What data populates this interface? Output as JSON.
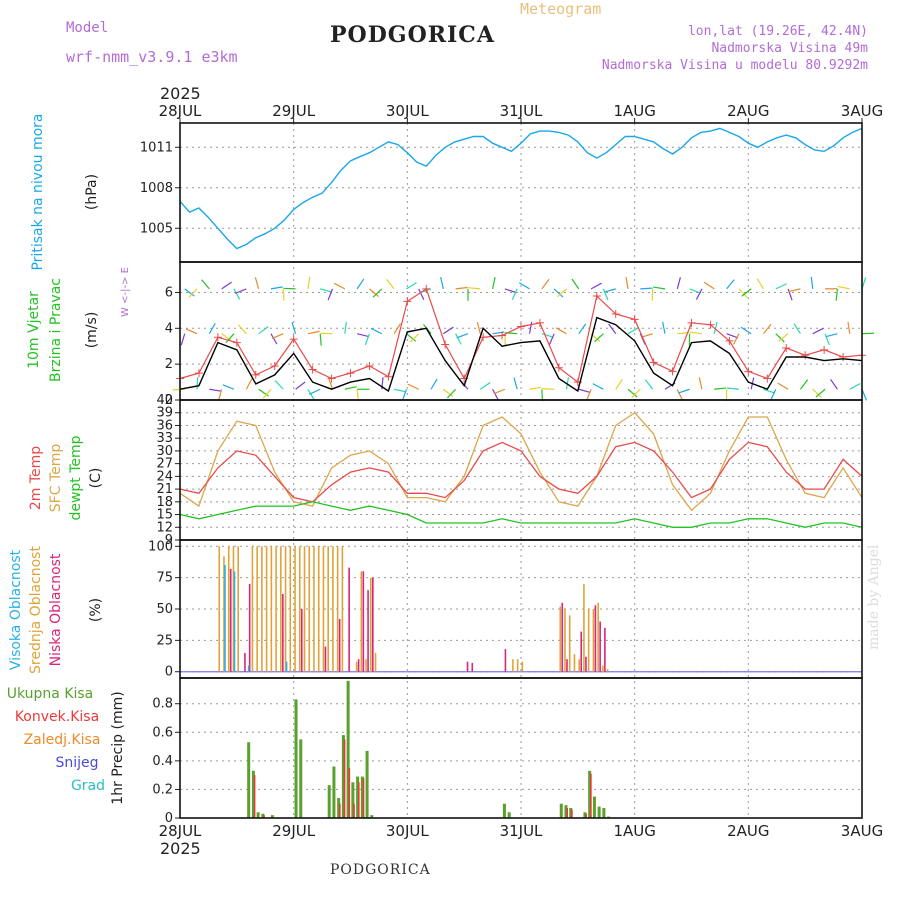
{
  "header": {
    "model_label": "Model",
    "model_name": "wrf-nmm_v3.9.1 e3km",
    "title": "PODGORICA",
    "meteogram": "Meteogram",
    "lonlat": "lon,lat (19.26E, 42.4N)",
    "altitude": "Nadmorska Visina 49m",
    "model_altitude": "Nadmorska Visina u modelu 80.9292m"
  },
  "footer": {
    "station": "PODGORICA",
    "credit": "made by Angel"
  },
  "time_axis": {
    "year": "2025",
    "labels": [
      "28JUL",
      "29JUL",
      "30JUL",
      "31JUL",
      "1AUG",
      "2AUG",
      "3AUG"
    ]
  },
  "colors": {
    "pressure": "#1aa7e8",
    "temp2m": "#e84a4a",
    "sfctemp": "#dca64a",
    "dewpt": "#22c322",
    "cloud_high": "#2bb0e8",
    "cloud_mid": "#e0a33a",
    "cloud_low": "#d8267a",
    "precip_total": "#5aa02c",
    "precip_conv": "#e83a3a",
    "precip_frz": "#f08a2a",
    "precip_snow": "#4a4ad8",
    "precip_hail": "#2ac0c0"
  },
  "chart_data": [
    {
      "type": "line",
      "title": "Pritisak na nivou mora",
      "ylabel": "(hPa)",
      "ylim": [
        1002.5,
        1012.8
      ],
      "yticks": [
        "1005",
        "1008",
        "1011"
      ],
      "x": [
        0,
        2,
        4,
        6,
        8,
        10,
        12,
        14,
        16,
        18,
        20,
        22,
        24,
        26,
        28,
        30,
        32,
        34,
        36,
        38,
        40,
        42,
        44,
        46,
        48,
        50,
        52,
        54,
        56,
        58,
        60,
        62,
        64,
        66,
        68,
        70,
        72,
        74,
        76,
        78,
        80,
        82,
        84,
        86,
        88,
        90,
        92,
        94,
        96,
        98,
        100,
        102,
        104,
        106,
        108,
        110,
        112,
        114,
        116,
        118,
        120,
        122,
        124,
        126,
        128,
        130,
        132,
        134,
        136,
        138,
        140,
        142,
        144
      ],
      "series": [
        {
          "name": "pressure",
          "values": [
            1007.0,
            1006.2,
            1006.5,
            1005.8,
            1005.0,
            1004.2,
            1003.5,
            1003.8,
            1004.3,
            1004.6,
            1005.0,
            1005.6,
            1006.4,
            1006.9,
            1007.3,
            1007.6,
            1008.4,
            1009.3,
            1010.0,
            1010.3,
            1010.6,
            1011.0,
            1011.4,
            1011.2,
            1010.6,
            1009.9,
            1009.6,
            1010.4,
            1011.0,
            1011.4,
            1011.6,
            1011.8,
            1011.8,
            1011.3,
            1011.0,
            1010.7,
            1011.3,
            1012.0,
            1012.2,
            1012.2,
            1012.1,
            1011.9,
            1011.4,
            1010.6,
            1010.2,
            1010.6,
            1011.2,
            1011.8,
            1011.8,
            1011.6,
            1011.4,
            1010.9,
            1010.5,
            1011.0,
            1011.7,
            1012.1,
            1012.2,
            1012.4,
            1012.1,
            1011.8,
            1011.3,
            1011.0,
            1011.4,
            1011.7,
            1011.9,
            1011.7,
            1011.2,
            1010.8,
            1010.7,
            1011.1,
            1011.7,
            1012.1,
            1012.4
          ]
        }
      ]
    },
    {
      "type": "line",
      "title": "10m Vjetar Brzina i Pravac",
      "ylabel": "(m/s)",
      "ylim": [
        0,
        7.7
      ],
      "yticks": [
        "0",
        "2",
        "4",
        "6"
      ],
      "compass": "W <-|-> E",
      "x": [
        0,
        4,
        8,
        12,
        16,
        20,
        24,
        28,
        32,
        36,
        40,
        44,
        48,
        52,
        56,
        60,
        64,
        68,
        72,
        76,
        80,
        84,
        88,
        92,
        96,
        100,
        104,
        108,
        112,
        116,
        120,
        124,
        128,
        132,
        136,
        140,
        144
      ],
      "series": [
        {
          "name": "wind_speed",
          "values": [
            0.6,
            0.8,
            3.2,
            2.8,
            0.9,
            1.4,
            2.6,
            1.0,
            0.6,
            1.0,
            1.2,
            0.5,
            3.8,
            4.0,
            2.2,
            0.8,
            4.0,
            3.0,
            3.2,
            3.3,
            1.2,
            0.5,
            4.6,
            4.2,
            3.3,
            1.5,
            0.8,
            3.2,
            3.3,
            2.6,
            1.0,
            0.6,
            2.4,
            2.4,
            2.2,
            2.3,
            2.2
          ]
        },
        {
          "name": "wind_gust",
          "values": [
            1.2,
            1.5,
            3.5,
            3.2,
            1.4,
            1.9,
            3.4,
            1.7,
            1.2,
            1.5,
            1.9,
            1.3,
            5.5,
            6.2,
            3.1,
            1.2,
            3.5,
            3.6,
            4.1,
            4.3,
            1.8,
            1.0,
            5.8,
            4.8,
            4.5,
            2.1,
            1.6,
            4.3,
            4.2,
            3.3,
            1.6,
            1.2,
            2.9,
            2.5,
            2.8,
            2.4,
            2.5
          ]
        }
      ]
    },
    {
      "type": "line",
      "title": "2m Temp / SFC Temp / dewpt Temp",
      "ylabel": "(C)",
      "ylim": [
        9,
        42
      ],
      "yticks": [
        "9",
        "12",
        "15",
        "18",
        "21",
        "24",
        "27",
        "30",
        "33",
        "36",
        "39",
        "42"
      ],
      "x": [
        0,
        4,
        8,
        12,
        16,
        20,
        24,
        28,
        32,
        36,
        40,
        44,
        48,
        52,
        56,
        60,
        64,
        68,
        72,
        76,
        80,
        84,
        88,
        92,
        96,
        100,
        104,
        108,
        112,
        116,
        120,
        124,
        128,
        132,
        136,
        140,
        144
      ],
      "series": [
        {
          "name": "2m Temp",
          "values": [
            21,
            20,
            26,
            30,
            29,
            24,
            19,
            18,
            22,
            25,
            26,
            25,
            20,
            20,
            19,
            23,
            30,
            32,
            30,
            24,
            21,
            20,
            24,
            31,
            32,
            30,
            25,
            19,
            21,
            28,
            32,
            31,
            25,
            21,
            21,
            28,
            24
          ]
        },
        {
          "name": "SFC Temp",
          "values": [
            20,
            17,
            30,
            37,
            36,
            25,
            18,
            17,
            26,
            29,
            30,
            27,
            19,
            19,
            18,
            24,
            36,
            38,
            34,
            25,
            18,
            17,
            24,
            36,
            39,
            34,
            22,
            16,
            20,
            30,
            38,
            38,
            28,
            20,
            19,
            26,
            19
          ]
        },
        {
          "name": "dewpt Temp",
          "values": [
            15,
            14,
            15,
            16,
            17,
            17,
            17,
            18,
            17,
            16,
            17,
            16,
            15,
            13,
            13,
            13,
            13,
            14,
            13,
            13,
            13,
            13,
            13,
            13,
            14,
            13,
            12,
            12,
            13,
            13,
            14,
            14,
            13,
            12,
            13,
            13,
            12
          ]
        }
      ]
    },
    {
      "type": "bar",
      "title": "Visoka / Srednja / Niska Oblacnost",
      "ylabel": "(%)",
      "ylim": [
        -5,
        105
      ],
      "yticks": [
        "0",
        "25",
        "50",
        "75",
        "100"
      ],
      "series": [
        {
          "name": "Srednja Oblacnost",
          "x": [
            8,
            9,
            10,
            11,
            12,
            15,
            16,
            17,
            18,
            19,
            20,
            21,
            22,
            23,
            24,
            25,
            26,
            27,
            28,
            29,
            30,
            31,
            32,
            33,
            34,
            37,
            38,
            39,
            40,
            41,
            70,
            71,
            72,
            80,
            81,
            82,
            83,
            84,
            85,
            86,
            87,
            88,
            89,
            90
          ],
          "values": [
            100,
            92,
            100,
            100,
            100,
            100,
            100,
            100,
            100,
            100,
            100,
            100,
            100,
            100,
            100,
            100,
            100,
            100,
            100,
            100,
            100,
            100,
            100,
            100,
            100,
            8,
            80,
            10,
            75,
            15,
            10,
            10,
            8,
            52,
            50,
            45,
            14,
            10,
            70,
            50,
            50,
            55,
            5,
            2
          ]
        },
        {
          "name": "Niska Oblacnost",
          "x": [
            10,
            13,
            14,
            21,
            25,
            30,
            33,
            35,
            37,
            38,
            39,
            40,
            60,
            61,
            68,
            80,
            81,
            84,
            85,
            87,
            88,
            89
          ],
          "values": [
            82,
            15,
            70,
            62,
            50,
            20,
            42,
            83,
            10,
            80,
            65,
            75,
            8,
            7,
            18,
            55,
            10,
            32,
            12,
            53,
            40,
            35
          ]
        },
        {
          "name": "Visoka Oblacnost",
          "x": [
            9,
            11,
            14,
            22
          ],
          "values": [
            85,
            80,
            5,
            8
          ]
        }
      ]
    },
    {
      "type": "bar",
      "title": "1hr Precip",
      "ylabel": "1hr Precip (mm)",
      "ylim": [
        0,
        0.98
      ],
      "yticks": [
        "0",
        "0.2",
        "0.4",
        "0.6",
        "0.8"
      ],
      "legend": [
        "Ukupna Kisa",
        "Konvek.Kisa",
        "Zaledj.Kisa",
        "Snijeg",
        "Grad"
      ],
      "series": [
        {
          "name": "Ukupna Kisa",
          "x": [
            14,
            15,
            16,
            17,
            19,
            24,
            25,
            31,
            32,
            33,
            34,
            35,
            36,
            37,
            38,
            39,
            40,
            68,
            69,
            80,
            81,
            82,
            85,
            86,
            87,
            88,
            89,
            90
          ],
          "values": [
            0.53,
            0.33,
            0.04,
            0.03,
            0.02,
            0.83,
            0.55,
            0.23,
            0.36,
            0.14,
            0.58,
            0.96,
            0.25,
            0.29,
            0.29,
            0.47,
            0.02,
            0.1,
            0.04,
            0.1,
            0.09,
            0.07,
            0.04,
            0.33,
            0.15,
            0.08,
            0.07,
            0.01
          ]
        },
        {
          "name": "Konvek.Kisa",
          "x": [
            15,
            17,
            33,
            34,
            35,
            36,
            37,
            38,
            81,
            82,
            85,
            86
          ],
          "values": [
            0.3,
            0.02,
            0.1,
            0.55,
            0.35,
            0.1,
            0.25,
            0.28,
            0.07,
            0.06,
            0.03,
            0.31
          ]
        }
      ]
    }
  ]
}
